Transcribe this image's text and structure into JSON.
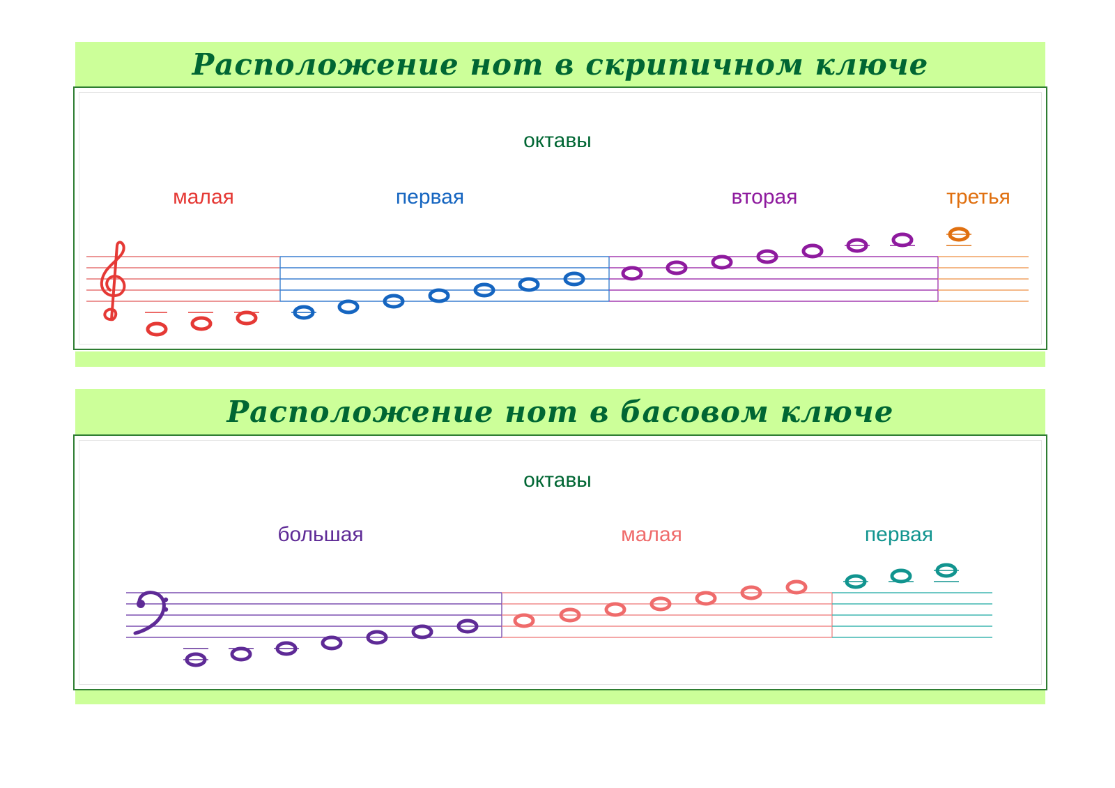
{
  "treble": {
    "title": "Расположение нот в скрипичном ключе",
    "heading": "октавы",
    "octaves": [
      {
        "label": "малая",
        "color": "#e53935"
      },
      {
        "label": "первая",
        "color": "#1565c0"
      },
      {
        "label": "вторая",
        "color": "#8e1a9e"
      },
      {
        "label": "третья",
        "color": "#e07010"
      }
    ],
    "clef": "treble-clef-icon"
  },
  "bass": {
    "title": "Расположение нот в басовом ключе",
    "heading": "октавы",
    "octaves": [
      {
        "label": "большая",
        "color": "#5e2a96"
      },
      {
        "label": "малая",
        "color": "#ef6b6b"
      },
      {
        "label": "первая",
        "color": "#11948f"
      }
    ],
    "clef": "bass-clef-icon"
  },
  "colors": {
    "banner": "#ccff99",
    "title_text": "#006633",
    "card_border": "#2e7d32",
    "heading_text": "#006633"
  }
}
